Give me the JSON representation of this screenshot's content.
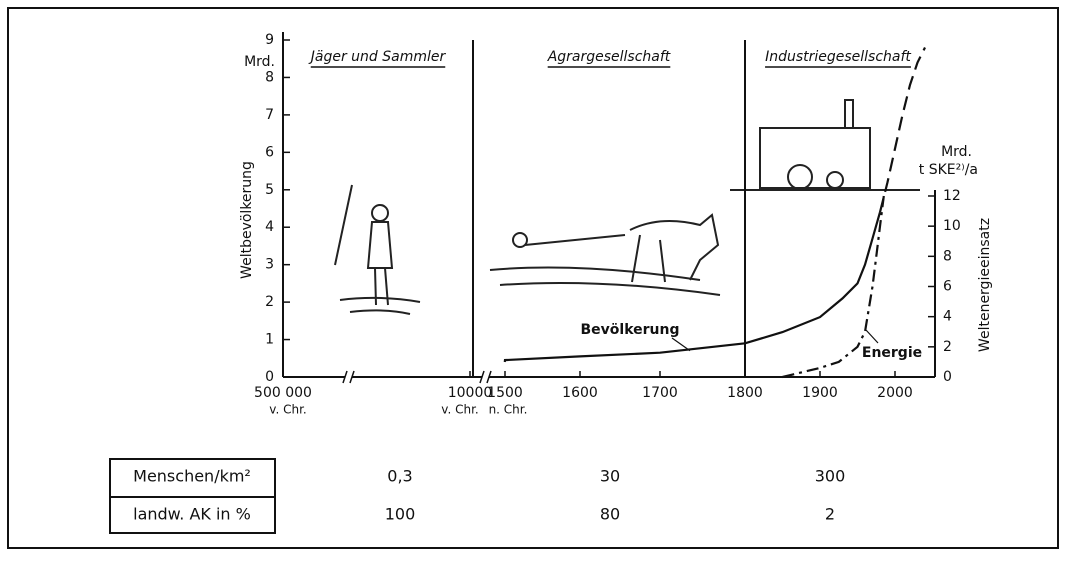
{
  "chart_data": {
    "type": "line",
    "eras": [
      "Jäger und Sammler",
      "Agrargesellschaft",
      "Industriegesellschaft"
    ],
    "ylabel": "Weltbevölkerung",
    "yunit": "Mrd.",
    "y2label": "Weltenergieeinsatz",
    "y2unit": [
      "Mrd.",
      "t SKE²⁾/a"
    ],
    "era_labels": [
      "v. Chr.",
      "v. Chr.",
      "n. Chr."
    ],
    "xlim": [
      -500000,
      2050
    ],
    "xticks": [
      {
        "value": -500000,
        "label": "500 000"
      },
      {
        "value": -10000,
        "label": "10000"
      },
      1500,
      1600,
      1700,
      1800,
      1900,
      2000
    ],
    "ylim": [
      0,
      9
    ],
    "yticks": [
      0,
      1,
      2,
      3,
      4,
      5,
      6,
      7,
      8,
      9
    ],
    "y2lim": [
      0,
      12
    ],
    "y2ticks": [
      0,
      2,
      4,
      6,
      8,
      10,
      12
    ],
    "series": [
      {
        "name": "Bevölkerung",
        "color": "#111111",
        "line_style": "solid",
        "x": [
          1450,
          1500,
          1600,
          1700,
          1800,
          1850,
          1900,
          1930,
          1950,
          1960,
          1970,
          1980
        ],
        "values": [
          0.4,
          0.45,
          0.55,
          0.65,
          0.9,
          1.2,
          1.6,
          2.1,
          2.5,
          3.0,
          3.7,
          4.4
        ]
      },
      {
        "color": "#111111",
        "line_style": "dashed",
        "x": [
          1980,
          1990,
          2000,
          2010,
          2020,
          2030,
          2040
        ],
        "values": [
          4.4,
          5.2,
          6.1,
          7.0,
          7.8,
          8.4,
          8.8
        ]
      },
      {
        "name": "Energie",
        "color": "#111111",
        "line_style": "dashdot",
        "axis": "y2",
        "x": [
          1850,
          1900,
          1925,
          1950,
          1960,
          1970,
          1975,
          1980,
          1985
        ],
        "values": [
          0,
          0.6,
          1,
          2,
          3,
          6,
          8,
          10,
          12
        ]
      }
    ]
  },
  "table": {
    "rows": [
      [
        "Menschen/km²",
        "0,3",
        "30",
        "300"
      ],
      [
        "landw. AK in %",
        "100",
        "80",
        "2"
      ]
    ]
  }
}
